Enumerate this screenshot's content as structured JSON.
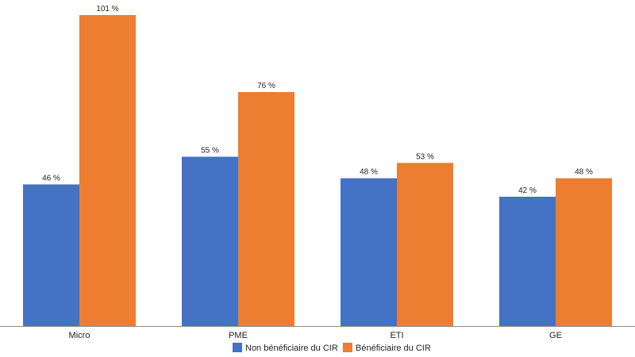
{
  "chart_data": {
    "type": "bar",
    "categories": [
      "Micro",
      "PME",
      "ETI",
      "GE"
    ],
    "series": [
      {
        "name": "Non bénéficiaire du CIR",
        "values": [
          46,
          55,
          48,
          42
        ],
        "labels": [
          "46 %",
          "55 %",
          "48 %",
          "42 %"
        ],
        "color": "#4472C4"
      },
      {
        "name": "Bénéficiaire du CIR",
        "values": [
          101,
          76,
          53,
          48
        ],
        "labels": [
          "101 %",
          "76 %",
          "53 %",
          "48 %"
        ],
        "color": "#ED7D31"
      }
    ],
    "ylim": [
      0,
      105
    ],
    "grid": false,
    "legend_position": "bottom"
  }
}
